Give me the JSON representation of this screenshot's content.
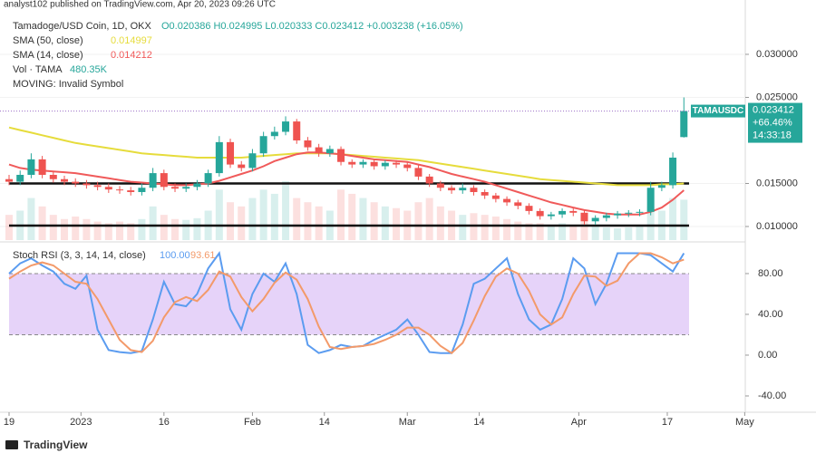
{
  "published": "analyst102 published on TradingView.com, Apr 20, 2023 09:26 UTC",
  "footer": "TradingView",
  "chart_data": [
    {
      "type": "candlestick",
      "title": "Tamadoge/USD Coin, 1D, OKX",
      "ohlc": "O0.020386  H0.024995  L0.020333  C0.023412  +0.003238 (+16.05%)",
      "up_color": "#26a69a",
      "down_color": "#ef5350",
      "x": [
        0,
        2,
        4,
        6,
        8,
        10,
        12,
        14,
        16,
        18,
        20,
        22,
        24,
        26,
        28,
        30,
        32,
        34,
        36,
        38,
        40,
        42,
        44,
        46,
        48,
        50,
        52,
        54,
        56,
        58,
        60,
        62,
        64,
        66,
        68,
        70,
        72,
        74,
        76,
        78,
        80,
        82,
        84,
        86,
        88,
        90,
        92,
        94,
        96,
        98,
        100,
        102,
        104,
        106,
        108,
        110,
        112,
        114,
        116,
        118,
        120,
        122
      ],
      "open": [
        0.0155,
        0.0152,
        0.016,
        0.0178,
        0.016,
        0.0155,
        0.0152,
        0.015,
        0.0148,
        0.0146,
        0.0143,
        0.0142,
        0.014,
        0.0145,
        0.0162,
        0.0146,
        0.0144,
        0.0146,
        0.015,
        0.0162,
        0.0198,
        0.0172,
        0.0168,
        0.0185,
        0.0205,
        0.021,
        0.0222,
        0.02,
        0.0192,
        0.0185,
        0.019,
        0.0175,
        0.0172,
        0.0175,
        0.017,
        0.0174,
        0.0172,
        0.0168,
        0.0158,
        0.015,
        0.0145,
        0.0142,
        0.0145,
        0.014,
        0.0136,
        0.0132,
        0.0128,
        0.0124,
        0.0118,
        0.0112,
        0.0114,
        0.0118,
        0.0116,
        0.0106,
        0.011,
        0.0113,
        0.0115,
        0.0116,
        0.0117,
        0.0145,
        0.0148,
        0.020386
      ],
      "high": [
        0.016,
        0.0165,
        0.0185,
        0.0182,
        0.0164,
        0.0159,
        0.0156,
        0.0154,
        0.0152,
        0.015,
        0.0147,
        0.0146,
        0.015,
        0.0168,
        0.0166,
        0.015,
        0.015,
        0.0154,
        0.0166,
        0.0205,
        0.0202,
        0.0176,
        0.019,
        0.021,
        0.0216,
        0.0228,
        0.0225,
        0.0204,
        0.0196,
        0.0194,
        0.0193,
        0.0178,
        0.0178,
        0.0178,
        0.0177,
        0.0177,
        0.0175,
        0.0171,
        0.0161,
        0.0153,
        0.0148,
        0.015,
        0.0148,
        0.0143,
        0.0139,
        0.0135,
        0.0131,
        0.0127,
        0.0121,
        0.0117,
        0.0121,
        0.0121,
        0.0119,
        0.0113,
        0.0116,
        0.0118,
        0.0119,
        0.012,
        0.0152,
        0.0152,
        0.0186,
        0.024995
      ],
      "low": [
        0.0148,
        0.0148,
        0.0156,
        0.0156,
        0.0151,
        0.0148,
        0.0146,
        0.0144,
        0.0142,
        0.0139,
        0.0138,
        0.0136,
        0.0136,
        0.0141,
        0.0142,
        0.014,
        0.014,
        0.0142,
        0.0146,
        0.0158,
        0.0168,
        0.0164,
        0.0164,
        0.0181,
        0.0201,
        0.0206,
        0.0196,
        0.0188,
        0.0181,
        0.0181,
        0.0171,
        0.0168,
        0.0168,
        0.0166,
        0.0166,
        0.0168,
        0.0164,
        0.0154,
        0.0146,
        0.0141,
        0.0138,
        0.0138,
        0.0136,
        0.0132,
        0.0128,
        0.0124,
        0.012,
        0.0114,
        0.0108,
        0.0108,
        0.011,
        0.0112,
        0.0102,
        0.0102,
        0.0106,
        0.0109,
        0.0111,
        0.0112,
        0.0113,
        0.0141,
        0.0144,
        0.020333
      ],
      "close": [
        0.0152,
        0.016,
        0.0178,
        0.016,
        0.0155,
        0.0152,
        0.015,
        0.0148,
        0.0146,
        0.0143,
        0.0142,
        0.014,
        0.0145,
        0.0162,
        0.0146,
        0.0144,
        0.0146,
        0.015,
        0.0162,
        0.0198,
        0.0172,
        0.0168,
        0.0185,
        0.0205,
        0.021,
        0.0222,
        0.02,
        0.0192,
        0.0185,
        0.019,
        0.0175,
        0.0172,
        0.0175,
        0.017,
        0.0174,
        0.0172,
        0.0168,
        0.0158,
        0.015,
        0.0145,
        0.0142,
        0.0145,
        0.014,
        0.0136,
        0.0132,
        0.0128,
        0.0124,
        0.0118,
        0.0112,
        0.0114,
        0.0118,
        0.0116,
        0.0106,
        0.011,
        0.0113,
        0.0115,
        0.0116,
        0.0117,
        0.0145,
        0.0148,
        0.018,
        0.023412
      ],
      "volume_name": "Vol · TAMA",
      "volume_label": "480.35K",
      "volume": [
        300,
        350,
        500,
        400,
        300,
        250,
        280,
        250,
        220,
        200,
        220,
        200,
        250,
        400,
        300,
        250,
        240,
        260,
        350,
        600,
        450,
        400,
        500,
        600,
        550,
        700,
        500,
        450,
        400,
        350,
        600,
        550,
        500,
        450,
        400,
        380,
        350,
        450,
        500,
        400,
        350,
        300,
        320,
        300,
        280,
        250,
        220,
        200,
        200,
        180,
        200,
        180,
        220,
        160,
        150,
        140,
        150,
        160,
        400,
        350,
        500,
        480.35
      ],
      "series": [
        {
          "name": "SMA (50, close)",
          "last_label": "0.014997",
          "color": "#e6dc3c",
          "values": [
            0.0215,
            0.0212,
            0.0209,
            0.0206,
            0.0203,
            0.02,
            0.0197,
            0.0195,
            0.0193,
            0.0191,
            0.0189,
            0.0187,
            0.0185,
            0.0184,
            0.0183,
            0.0182,
            0.0181,
            0.018,
            0.018,
            0.018,
            0.018,
            0.018,
            0.0181,
            0.0182,
            0.0183,
            0.0184,
            0.0185,
            0.0185,
            0.0185,
            0.0185,
            0.0184,
            0.0183,
            0.0182,
            0.0181,
            0.018,
            0.0179,
            0.0178,
            0.0177,
            0.0175,
            0.0173,
            0.0171,
            0.0169,
            0.0167,
            0.0165,
            0.0163,
            0.0161,
            0.0159,
            0.0157,
            0.0155,
            0.0154,
            0.0153,
            0.0152,
            0.0151,
            0.015,
            0.0149,
            0.0148,
            0.0148,
            0.0148,
            0.0148,
            0.0149,
            0.0149,
            0.014997
          ]
        },
        {
          "name": "SMA (14, close)",
          "last_label": "0.014212",
          "color": "#f05a5a",
          "values": [
            0.0172,
            0.0168,
            0.0166,
            0.0165,
            0.0164,
            0.0163,
            0.0162,
            0.016,
            0.0158,
            0.0156,
            0.0154,
            0.0152,
            0.0151,
            0.015,
            0.0149,
            0.0148,
            0.0148,
            0.0149,
            0.015,
            0.0153,
            0.0157,
            0.0161,
            0.0165,
            0.017,
            0.0176,
            0.018,
            0.0184,
            0.0186,
            0.0186,
            0.0185,
            0.0184,
            0.0182,
            0.018,
            0.0178,
            0.0177,
            0.0176,
            0.0175,
            0.0172,
            0.0169,
            0.0165,
            0.0161,
            0.0158,
            0.0155,
            0.0152,
            0.0148,
            0.0144,
            0.014,
            0.0136,
            0.0132,
            0.0128,
            0.0125,
            0.0122,
            0.0119,
            0.0117,
            0.0115,
            0.0114,
            0.0114,
            0.0114,
            0.0117,
            0.0122,
            0.0131,
            0.014212
          ]
        }
      ],
      "note": "MOVING: Invalid Symbol",
      "hlines": [
        0.015,
        0.0101
      ],
      "price_tag": {
        "symbol": "TAMAUSDC",
        "lines": [
          "0.023412",
          "+66.46%",
          "14:33:18"
        ]
      },
      "xlim": [
        -1.64,
        133.1
      ],
      "ylim": [
        0.00842,
        0.03505
      ],
      "yticks": [
        {
          "value": 0.01,
          "label": "0.010000"
        },
        {
          "value": 0.015,
          "label": "0.015000"
        },
        {
          "value": 0.025,
          "label": "0.025000"
        },
        {
          "value": 0.03,
          "label": "0.030000"
        }
      ],
      "xticks": [
        {
          "value": 0,
          "label": "19"
        },
        {
          "value": 13,
          "label": "2023"
        },
        {
          "value": 28,
          "label": "16"
        },
        {
          "value": 44,
          "label": "Feb"
        },
        {
          "value": 57,
          "label": "14"
        },
        {
          "value": 72,
          "label": "Mar"
        },
        {
          "value": 85,
          "label": "14"
        },
        {
          "value": 103,
          "label": "Apr"
        },
        {
          "value": 119,
          "label": "17"
        },
        {
          "value": 133,
          "label": "May"
        }
      ]
    },
    {
      "type": "line",
      "title": "Stoch RSI (3, 3, 14, 14, close)",
      "bands": [
        20,
        80
      ],
      "band_color": "#e0c8f8",
      "series": [
        {
          "last_label": "100.00",
          "color": "#5b9cf0",
          "values": [
            80,
            90,
            95,
            88,
            82,
            70,
            65,
            78,
            25,
            5,
            3,
            2,
            4,
            35,
            72,
            50,
            48,
            60,
            85,
            100,
            45,
            25,
            60,
            80,
            72,
            90,
            60,
            10,
            2,
            5,
            10,
            8,
            9,
            15,
            20,
            25,
            35,
            20,
            3,
            2,
            2,
            30,
            70,
            75,
            85,
            95,
            60,
            35,
            25,
            30,
            55,
            95,
            85,
            50,
            70,
            100,
            100,
            100,
            98,
            90,
            82,
            100
          ]
        },
        {
          "last_label": "93.61",
          "color": "#f39a6a",
          "values": [
            75,
            82,
            88,
            91,
            88,
            80,
            72,
            70,
            55,
            35,
            15,
            5,
            3,
            14,
            37,
            52,
            57,
            53,
            64,
            82,
            77,
            57,
            43,
            55,
            71,
            81,
            74,
            55,
            28,
            8,
            6,
            8,
            9,
            11,
            15,
            20,
            27,
            27,
            20,
            9,
            2,
            12,
            34,
            58,
            77,
            85,
            80,
            63,
            40,
            30,
            37,
            60,
            78,
            77,
            68,
            73,
            90,
            100,
            100,
            96,
            90,
            93.61
          ]
        }
      ],
      "ylim": [
        -56,
        108.4
      ],
      "yticks": [
        {
          "value": -40,
          "label": "-40.00"
        },
        {
          "value": 0,
          "label": "0.00"
        },
        {
          "value": 40,
          "label": "40.00"
        },
        {
          "value": 80,
          "label": "80.00"
        }
      ]
    }
  ]
}
